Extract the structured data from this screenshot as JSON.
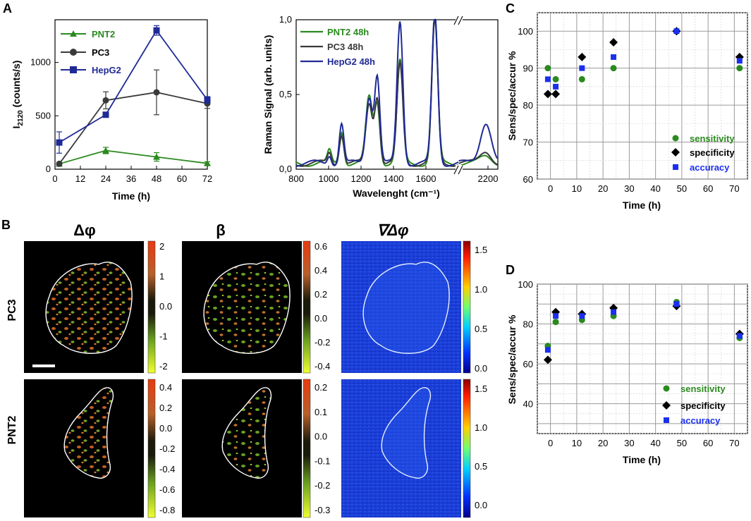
{
  "panels": {
    "a": "A",
    "b": "B",
    "c": "C",
    "d": "D"
  },
  "colors": {
    "pnt2": "#2a8a1e",
    "pc3": "#3a3a3a",
    "hepg2": "#1f2a96",
    "blue_marker": "#1b2ff0",
    "sens_green": "#2a8a1e",
    "spec_black": "#000000"
  },
  "chart_data": [
    {
      "id": "A_left",
      "type": "line",
      "xlabel": "Time (h)",
      "ylabel": "I2120 (counts/s)",
      "ylabel_main": "I",
      "ylabel_sub": "2120",
      "ylabel_rest": " (counts/s)",
      "xlim": [
        0,
        72
      ],
      "ylim": [
        0,
        1400
      ],
      "xticks": [
        0,
        12,
        24,
        36,
        48,
        60,
        72
      ],
      "yticks": [
        0,
        500,
        1000
      ],
      "legend": [
        "PNT2",
        "PC3",
        "HepG2"
      ],
      "series": [
        {
          "name": "PNT2",
          "x": [
            2,
            24,
            48,
            72
          ],
          "y": [
            50,
            175,
            115,
            55
          ],
          "err": [
            15,
            30,
            40,
            15
          ]
        },
        {
          "name": "PC3",
          "x": [
            2,
            24,
            48,
            72
          ],
          "y": [
            50,
            645,
            720,
            615
          ],
          "err": [
            15,
            80,
            210,
            45
          ]
        },
        {
          "name": "HepG2",
          "x": [
            2,
            24,
            48,
            72
          ],
          "y": [
            250,
            510,
            1300,
            650
          ],
          "err": [
            100,
            20,
            45,
            30
          ]
        }
      ]
    },
    {
      "id": "A_right",
      "type": "line",
      "xlabel": "Wavelenght (cm⁻¹)",
      "ylabel": "Raman Signal (arb. units)",
      "xticks": [
        "800",
        "1000",
        "1200",
        "1400",
        "1600",
        "2200"
      ],
      "yticks": [
        "0,0",
        "0,5",
        "1,0"
      ],
      "legend": [
        "PNT2 48h",
        "PC3 48h",
        "HepG2 48h"
      ],
      "peaks_cm": [
        1005,
        1080,
        1250,
        1300,
        1440,
        1655,
        2190
      ],
      "series": [
        {
          "name": "PNT2 48h",
          "peak_heights": [
            0.08,
            0.22,
            0.44,
            0.4,
            0.68,
            0.98,
            0.04
          ]
        },
        {
          "name": "PC3 48h",
          "peak_heights": [
            0.07,
            0.2,
            0.4,
            0.44,
            0.66,
            0.95,
            0.08
          ]
        },
        {
          "name": "HepG2 48h",
          "peak_heights": [
            0.06,
            0.27,
            0.45,
            0.58,
            0.95,
            1.0,
            0.28
          ]
        }
      ]
    },
    {
      "id": "C",
      "type": "scatter",
      "xlabel": "Time (h)",
      "ylabel": "Sens/spec/accur %",
      "xlim": [
        -5,
        75
      ],
      "ylim": [
        60,
        105
      ],
      "xticks": [
        0,
        10,
        20,
        30,
        40,
        50,
        60,
        70
      ],
      "yticks": [
        60,
        70,
        80,
        90,
        100
      ],
      "legend": [
        "sensitivity",
        "specificity",
        "accuracy"
      ],
      "series": [
        {
          "name": "sensitivity",
          "x": [
            -1,
            2,
            12,
            24,
            48,
            72
          ],
          "y": [
            90,
            87,
            87,
            90,
            100,
            90
          ]
        },
        {
          "name": "specificity",
          "x": [
            -1,
            2,
            12,
            24,
            48,
            72
          ],
          "y": [
            83,
            83,
            93,
            97,
            100,
            93
          ]
        },
        {
          "name": "accuracy",
          "x": [
            -1,
            2,
            12,
            24,
            48,
            72
          ],
          "y": [
            87,
            85,
            90,
            93,
            100,
            92
          ]
        }
      ]
    },
    {
      "id": "D",
      "type": "scatter",
      "xlabel": "Time (h)",
      "ylabel": "Sens/spec/accur %",
      "xlim": [
        -5,
        75
      ],
      "ylim": [
        25,
        100
      ],
      "xticks": [
        0,
        10,
        20,
        30,
        40,
        50,
        60,
        70
      ],
      "yticks": [
        40,
        60,
        80,
        100
      ],
      "legend": [
        "sensitivity",
        "specificity",
        "accuracy"
      ],
      "series": [
        {
          "name": "sensitivity",
          "x": [
            -1,
            2,
            12,
            24,
            48,
            72
          ],
          "y": [
            69,
            81,
            82,
            84,
            91,
            73
          ]
        },
        {
          "name": "specificity",
          "x": [
            -1,
            2,
            12,
            24,
            48,
            72
          ],
          "y": [
            62,
            86,
            85,
            88,
            89,
            75
          ]
        },
        {
          "name": "accuracy",
          "x": [
            -1,
            2,
            12,
            24,
            48,
            72
          ],
          "y": [
            67,
            84,
            84,
            86,
            90,
            74
          ]
        }
      ]
    },
    {
      "id": "B_maps",
      "type": "heatmap",
      "column_titles": [
        "Δφ",
        "β",
        "∇Δφ"
      ],
      "row_labels": [
        "PC3",
        "PNT2"
      ],
      "colorbars": [
        {
          "id": "pc3_dphi",
          "ticks": [
            "2",
            "1",
            "0.0",
            "-1",
            "-2"
          ]
        },
        {
          "id": "pc3_beta",
          "ticks": [
            "0.6",
            "0.4",
            "0.2",
            "0.0",
            "-0.2",
            "-0.4"
          ]
        },
        {
          "id": "pc3_grad",
          "ticks": [
            "1.5",
            "1.0",
            "0.5",
            "0.0"
          ]
        },
        {
          "id": "pnt2_dphi",
          "ticks": [
            "0.4",
            "0.2",
            "0.0",
            "-0.2",
            "-0.4",
            "-0.6",
            "-0.8"
          ]
        },
        {
          "id": "pnt2_beta",
          "ticks": [
            "0.2",
            "0.1",
            "0.0",
            "-0.1",
            "-0.2",
            "-0.3"
          ]
        },
        {
          "id": "pnt2_grad",
          "ticks": [
            "1.5",
            "1.0",
            "0.5",
            "0.0"
          ]
        }
      ]
    }
  ]
}
